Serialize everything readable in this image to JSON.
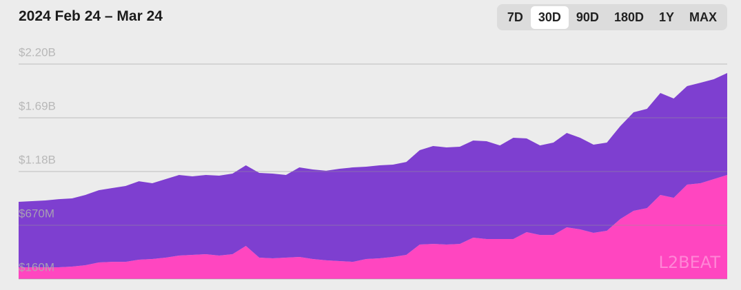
{
  "chart_data": {
    "type": "stacked-area",
    "title": "2024 Feb 24 – Mar 24",
    "ylim": [
      160000000,
      2200000000
    ],
    "yticks": [
      {
        "value": 160000000,
        "label": "$160M"
      },
      {
        "value": 670000000,
        "label": "$670M"
      },
      {
        "value": 1180000000,
        "label": "$1.18B"
      },
      {
        "value": 1690000000,
        "label": "$1.69B"
      },
      {
        "value": 2200000000,
        "label": "$2.20B"
      }
    ],
    "grid": true,
    "series": [
      {
        "color": "#ff46c0",
        "values": [
          271000000,
          271000000,
          271000000,
          271000000,
          278000000,
          291000000,
          317000000,
          323000000,
          323000000,
          343000000,
          350000000,
          363000000,
          382000000,
          389000000,
          395000000,
          382000000,
          395000000,
          474000000,
          363000000,
          356000000,
          363000000,
          369000000,
          350000000,
          337000000,
          330000000,
          323000000,
          350000000,
          356000000,
          369000000,
          389000000,
          487000000,
          493000000,
          487000000,
          493000000,
          552000000,
          539000000,
          539000000,
          539000000,
          605000000,
          578000000,
          578000000,
          650000000,
          631000000,
          598000000,
          618000000,
          729000000,
          807000000,
          833000000,
          958000000,
          931000000,
          1056000000,
          1069000000,
          1108000000,
          1147000000
        ]
      },
      {
        "color": "#7e3fd0",
        "values": [
          621000000,
          628000000,
          634000000,
          647000000,
          647000000,
          667000000,
          686000000,
          700000000,
          720000000,
          745000000,
          719000000,
          745000000,
          765000000,
          745000000,
          752000000,
          759000000,
          765000000,
          765000000,
          804000000,
          804000000,
          784000000,
          850000000,
          850000000,
          850000000,
          876000000,
          896000000,
          876000000,
          883000000,
          876000000,
          882000000,
          896000000,
          929000000,
          922000000,
          922000000,
          922000000,
          929000000,
          889000000,
          961000000,
          889000000,
          850000000,
          877000000,
          896000000,
          869000000,
          837000000,
          837000000,
          882000000,
          935000000,
          942000000,
          967000000,
          942000000,
          935000000,
          954000000,
          948000000,
          968000000
        ]
      }
    ]
  },
  "controls": {
    "ranges": [
      "7D",
      "30D",
      "90D",
      "180D",
      "1Y",
      "MAX"
    ],
    "selected": 1
  },
  "watermark": "L2BEAT"
}
